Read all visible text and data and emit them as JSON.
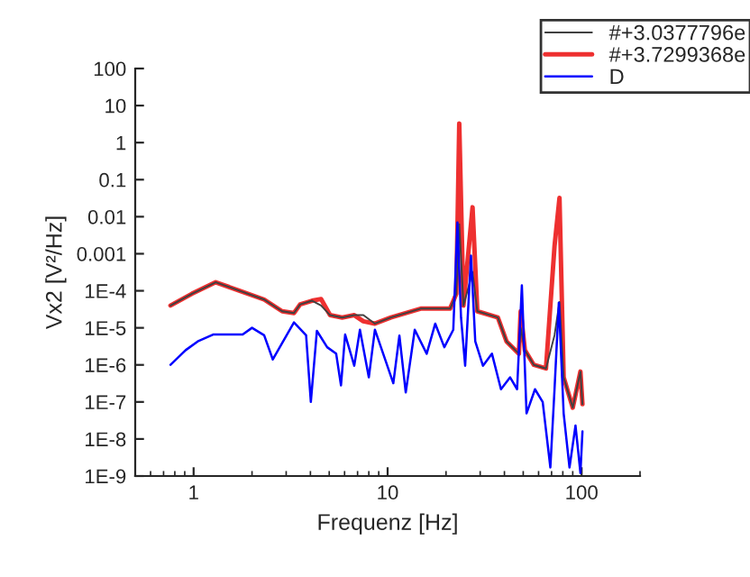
{
  "chart_data": {
    "type": "line",
    "xlabel": "Frequenz [Hz]",
    "ylabel": "Vx2 [V²/Hz]",
    "log": "xy",
    "grid": false,
    "legend": "top right",
    "xlim": [
      0.5,
      200
    ],
    "xticks": [
      1,
      10,
      100
    ],
    "ylim": [
      1e-09,
      100
    ],
    "yticks": [
      100,
      10,
      1,
      0.1,
      0.01,
      0.001,
      {
        "value": 0.0001,
        "label": "1E-4"
      },
      {
        "value": 1e-05,
        "label": "1E-5"
      },
      {
        "value": 1e-06,
        "label": "1E-6"
      },
      {
        "value": 1e-07,
        "label": "1E-7"
      },
      {
        "value": 1e-08,
        "label": "1E-8"
      },
      {
        "value": 1e-09,
        "label": "1E-9"
      }
    ],
    "series": [
      {
        "name": "#+3.0377796e",
        "color": "#404040",
        "x": [
          0.76,
          0.98,
          1.3,
          1.73,
          2.31,
          2.86,
          3.29,
          3.54,
          4.08,
          4.54,
          5.05,
          5.83,
          6.73,
          7.5,
          8.6,
          10.4,
          14.8,
          21,
          22.6,
          23.4,
          24.6,
          27.4,
          29,
          37,
          41,
          47.5,
          48.5,
          51,
          56.7,
          65.5,
          72.5,
          76.9,
          80.8,
          90,
          98.6,
          101
        ],
        "values": [
          4e-05,
          8.3e-05,
          0.00017,
          0.0001,
          5.8e-05,
          2.8e-05,
          2.5e-05,
          4.3e-05,
          5.4e-05,
          4e-05,
          2.2e-05,
          1.9e-05,
          2.2e-05,
          2.2e-05,
          1.3e-05,
          1.9e-05,
          3.3e-05,
          3.3e-05,
          8.3e-05,
          0.0063,
          4e-05,
          0.00032,
          2.8e-05,
          1.9e-05,
          4.3e-06,
          2e-06,
          1e-05,
          2.5e-06,
          1e-06,
          8e-07,
          6.3e-06,
          5e-05,
          4.6e-07,
          7e-08,
          6.6e-07,
          8.7e-08
        ]
      },
      {
        "name": "#+3.7299368e",
        "color": "#ee3030",
        "x": [
          0.76,
          0.98,
          1.3,
          1.73,
          2.31,
          2.86,
          3.29,
          3.54,
          4.08,
          4.54,
          5.05,
          5.83,
          6.73,
          7.5,
          8.6,
          10.4,
          14.8,
          21,
          22.6,
          23.4,
          24.6,
          27.4,
          29,
          37,
          41,
          47.5,
          48.5,
          51,
          56.7,
          65.5,
          72.5,
          76.9,
          80.8,
          90,
          98.6,
          101
        ],
        "values": [
          4e-05,
          8.3e-05,
          0.00017,
          0.0001,
          5.8e-05,
          2.8e-05,
          2.5e-05,
          4.3e-05,
          5.4e-05,
          6e-05,
          2.2e-05,
          1.9e-05,
          2.2e-05,
          1.5e-05,
          1.3e-05,
          1.9e-05,
          3.3e-05,
          3.3e-05,
          8.3e-05,
          3.3,
          4e-05,
          0.018,
          2.8e-05,
          1.9e-05,
          4.3e-06,
          2e-06,
          2.8e-05,
          2.5e-06,
          1e-06,
          8e-07,
          0.0016,
          0.032,
          4.6e-07,
          7e-08,
          6.6e-07,
          8.7e-08
        ]
      },
      {
        "name": "D",
        "color": "#0000ff",
        "x": [
          0.76,
          0.91,
          1.05,
          1.26,
          1.79,
          2.0,
          2.31,
          2.56,
          3.29,
          3.8,
          4.02,
          4.32,
          4.88,
          5.43,
          5.75,
          6.04,
          6.73,
          7.2,
          8.0,
          8.6,
          10.7,
          11.5,
          12.4,
          13.8,
          15.9,
          17.6,
          19.6,
          21.8,
          22.9,
          23.9,
          25.1,
          26.9,
          28.3,
          31,
          34.5,
          38.4,
          42.8,
          46.5,
          49.2,
          52,
          57.5,
          63,
          69,
          72.5,
          76.3,
          80.8,
          86.6,
          93,
          98.6,
          101
        ],
        "values": [
          1e-06,
          2.5e-06,
          4.3e-06,
          6.6e-06,
          6.6e-06,
          1e-05,
          6.3e-06,
          1.4e-06,
          1.4e-05,
          6.3e-06,
          1e-07,
          8.3e-06,
          3e-06,
          2e-06,
          2.8e-07,
          6.6e-06,
          9.5e-07,
          8.9e-06,
          4.6e-07,
          8.9e-06,
          3.2e-07,
          6.2e-06,
          1.8e-07,
          8.9e-06,
          2e-06,
          1.3e-05,
          3e-06,
          8.9e-06,
          0.007,
          1.9e-05,
          9.5e-07,
          0.00089,
          4.3e-06,
          9.5e-07,
          2e-06,
          2.2e-07,
          4.6e-07,
          2.2e-07,
          0.00014,
          4.9e-08,
          2.2e-07,
          1e-07,
          1.7e-09,
          2.2e-07,
          4.8e-05,
          4.9e-08,
          1.7e-09,
          2.3e-08,
          1.2e-09,
          1.6e-08
        ]
      }
    ]
  }
}
